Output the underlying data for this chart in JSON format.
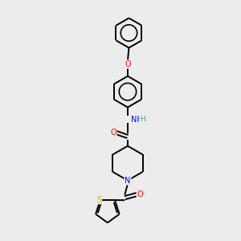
{
  "background_color": "#ececec",
  "bond_color": "#000000",
  "figsize": [
    3.0,
    3.0
  ],
  "dpi": 100,
  "atom_colors": {
    "N": "#0000ff",
    "O": "#ff0000",
    "S": "#ccaa00",
    "C": "#000000",
    "H": "#4a9a9a"
  },
  "lw": 1.4
}
